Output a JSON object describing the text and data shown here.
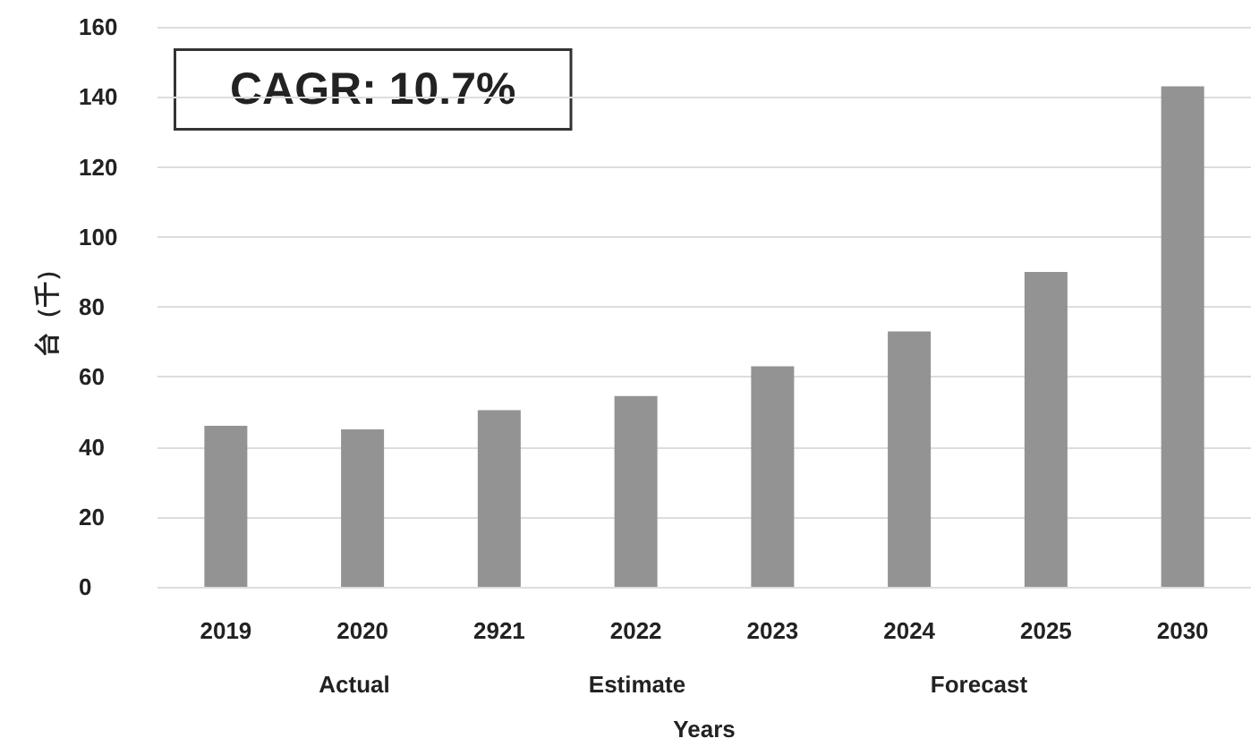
{
  "chart_data": {
    "type": "bar",
    "xlabel": "Years",
    "ylabel": "台（千）",
    "categories": [
      "2019",
      "2020",
      "2921",
      "2022",
      "2023",
      "2024",
      "2025",
      "2030"
    ],
    "values": [
      46,
      45,
      50.5,
      54.5,
      63,
      73,
      90,
      143
    ],
    "color": "#939393",
    "ylim": [
      0,
      160
    ],
    "yticks": [
      0,
      20,
      40,
      60,
      80,
      100,
      120,
      140,
      160
    ],
    "grid": "y",
    "annotations": [
      "CAGR: 10.7%",
      "Actual",
      "Estimate",
      "Forecast"
    ]
  }
}
